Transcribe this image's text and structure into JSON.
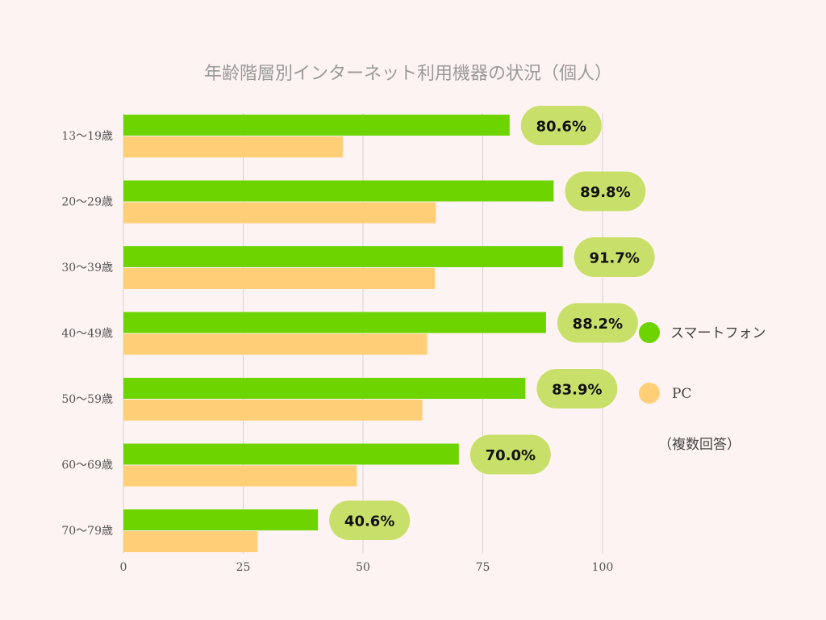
{
  "chart_data": {
    "type": "bar",
    "orientation": "horizontal",
    "title": "年齢階層別インターネット利用機器の状況（個人）",
    "categories": [
      "13〜19歳",
      "20〜29歳",
      "30〜39歳",
      "40〜49歳",
      "50〜59歳",
      "60〜69歳",
      "70〜79歳"
    ],
    "series": [
      {
        "name": "スマートフォン",
        "color": "#6dd400",
        "values": [
          80.6,
          89.8,
          91.7,
          88.2,
          83.9,
          70.0,
          40.6
        ],
        "labels": [
          "80.6%",
          "89.8%",
          "91.7%",
          "88.2%",
          "83.9%",
          "70.0%",
          "40.6%"
        ]
      },
      {
        "name": "PC",
        "color": "#ffcf78",
        "values": [
          45.8,
          65.2,
          65.0,
          63.4,
          62.4,
          48.7,
          28.0
        ]
      }
    ],
    "xlim": [
      0,
      100
    ],
    "xticks": [
      "0",
      "25",
      "50",
      "75",
      "100"
    ],
    "xtick_values": [
      0,
      25,
      50,
      75,
      100
    ],
    "grid": true,
    "legend_position": "right",
    "note": "（複数回答）",
    "label_bubble_color": "#c8e06a"
  }
}
